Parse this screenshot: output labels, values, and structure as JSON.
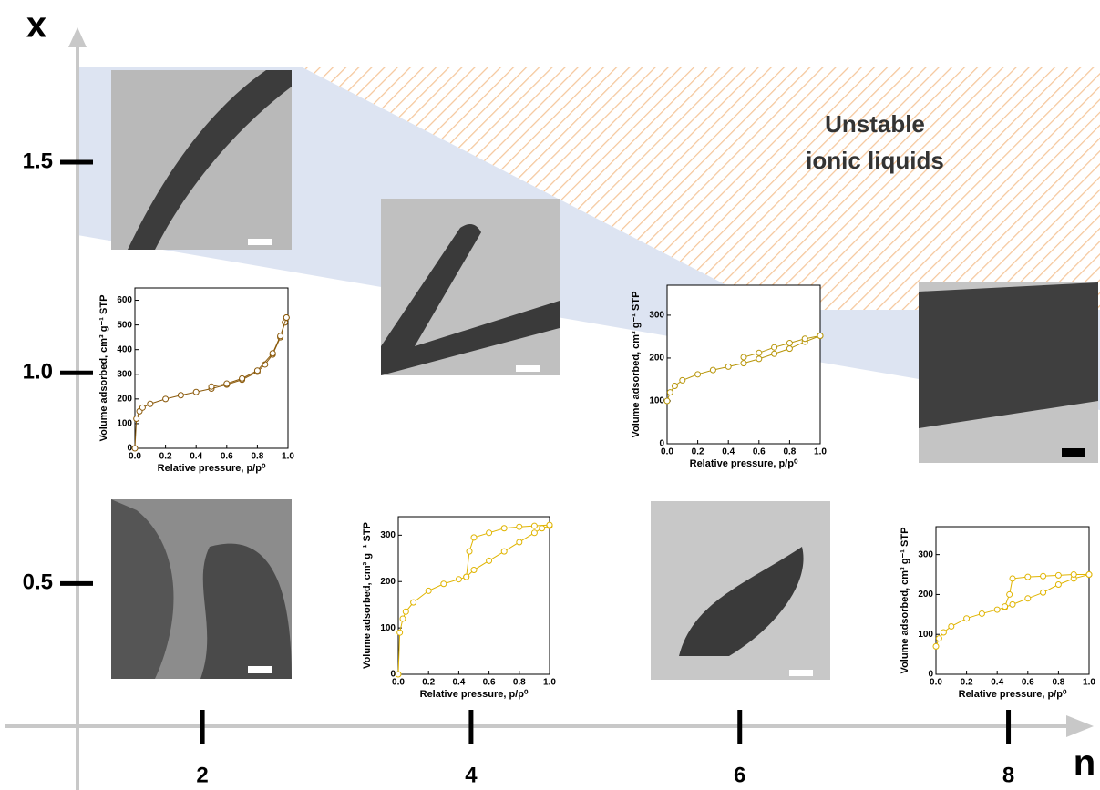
{
  "chart_data": [
    {
      "type": "frame",
      "x_label": "n",
      "y_label": "x",
      "xlim": [
        1.07,
        8.6
      ],
      "ylim": [
        0.17,
        1.82
      ],
      "xticks": [
        2,
        4,
        6,
        8
      ],
      "yticks": [
        0.5,
        {
          "value": 1,
          "label": "1.0"
        },
        1.5
      ],
      "annotation": [
        "Unstable",
        "ionic liquids"
      ]
    },
    {
      "type": "isotherm",
      "x_label": "Relative pressure, p/p⁰",
      "y_label": "Volume adsorbed, cm³ g⁻¹ STP",
      "xlim": [
        0,
        1
      ],
      "ylim": [
        0,
        650
      ],
      "xticks": [
        {
          "value": 0,
          "label": "0.0"
        },
        {
          "value": 0.2,
          "label": "0.2"
        },
        {
          "value": 0.4,
          "label": "0.4"
        },
        {
          "value": 0.6,
          "label": "0.6"
        },
        {
          "value": 0.8,
          "label": "0.8"
        },
        {
          "value": 1,
          "label": "1.0"
        }
      ],
      "yticks": [
        0,
        100,
        200,
        300,
        400,
        500,
        600
      ],
      "series": [
        {
          "color": "#8b5a0b",
          "x": [
            0,
            0.01,
            0.03,
            0.05,
            0.1,
            0.2,
            0.3,
            0.4,
            0.5,
            0.6,
            0.7,
            0.8,
            0.85,
            0.9,
            0.95,
            0.98,
            0.99
          ],
          "values": [
            0,
            120,
            150,
            165,
            180,
            200,
            215,
            228,
            242,
            258,
            278,
            310,
            340,
            380,
            450,
            510,
            530
          ]
        },
        {
          "color": "#8b5a0b",
          "x": [
            0.99,
            0.95,
            0.9,
            0.8,
            0.7,
            0.6,
            0.5
          ],
          "values": [
            530,
            455,
            385,
            315,
            283,
            262,
            250
          ]
        }
      ]
    },
    {
      "type": "isotherm",
      "x_label": "Relative pressure, p/p⁰",
      "y_label": "Volume adsorbed, cm³ g⁻¹ STP",
      "xlim": [
        0,
        1
      ],
      "ylim": [
        0,
        340
      ],
      "xticks": [
        {
          "value": 0,
          "label": "0.0"
        },
        {
          "value": 0.2,
          "label": "0.2"
        },
        {
          "value": 0.4,
          "label": "0.4"
        },
        {
          "value": 0.6,
          "label": "0.6"
        },
        {
          "value": 0.8,
          "label": "0.8"
        },
        {
          "value": 1,
          "label": "1.0"
        }
      ],
      "yticks": [
        0,
        100,
        200,
        300
      ],
      "series": [
        {
          "color": "#e0b400",
          "x": [
            0,
            0.01,
            0.03,
            0.05,
            0.1,
            0.2,
            0.3,
            0.4,
            0.45,
            0.5,
            0.6,
            0.7,
            0.8,
            0.9,
            0.95,
            1.0
          ],
          "values": [
            0,
            90,
            120,
            135,
            155,
            180,
            195,
            205,
            210,
            225,
            245,
            265,
            285,
            305,
            315,
            320
          ]
        },
        {
          "color": "#e0b400",
          "x": [
            1.0,
            0.9,
            0.8,
            0.7,
            0.6,
            0.5,
            0.47,
            0.45
          ],
          "values": [
            322,
            320,
            318,
            315,
            305,
            295,
            265,
            210
          ]
        }
      ]
    },
    {
      "type": "isotherm",
      "x_label": "Relative pressure, p/p⁰",
      "y_label": "Volume adsorbed, cm³ g⁻¹ STP",
      "xlim": [
        0,
        1
      ],
      "ylim": [
        0,
        370
      ],
      "xticks": [
        {
          "value": 0,
          "label": "0.0"
        },
        {
          "value": 0.2,
          "label": "0.2"
        },
        {
          "value": 0.4,
          "label": "0.4"
        },
        {
          "value": 0.6,
          "label": "0.6"
        },
        {
          "value": 0.8,
          "label": "0.8"
        },
        {
          "value": 1,
          "label": "1.0"
        }
      ],
      "yticks": [
        0,
        100,
        200,
        300
      ],
      "series": [
        {
          "color": "#b8960a",
          "x": [
            0,
            0.02,
            0.05,
            0.1,
            0.2,
            0.3,
            0.4,
            0.5,
            0.6,
            0.7,
            0.8,
            0.9,
            1.0
          ],
          "values": [
            100,
            120,
            135,
            148,
            162,
            172,
            180,
            188,
            198,
            210,
            222,
            238,
            252
          ]
        },
        {
          "color": "#b8960a",
          "x": [
            1.0,
            0.9,
            0.8,
            0.7,
            0.6,
            0.5
          ],
          "values": [
            252,
            245,
            235,
            225,
            212,
            202
          ]
        }
      ]
    },
    {
      "type": "isotherm",
      "x_label": "Relative pressure, p/p⁰",
      "y_label": "Volume adsorbed, cm³ g⁻¹ STP",
      "xlim": [
        0,
        1
      ],
      "ylim": [
        0,
        370
      ],
      "xticks": [
        {
          "value": 0,
          "label": "0.0"
        },
        {
          "value": 0.2,
          "label": "0.2"
        },
        {
          "value": 0.4,
          "label": "0.4"
        },
        {
          "value": 0.6,
          "label": "0.6"
        },
        {
          "value": 0.8,
          "label": "0.8"
        },
        {
          "value": 1,
          "label": "1.0"
        }
      ],
      "yticks": [
        0,
        100,
        200,
        300
      ],
      "series": [
        {
          "color": "#e0b400",
          "x": [
            0,
            0.02,
            0.05,
            0.1,
            0.2,
            0.3,
            0.4,
            0.45,
            0.5,
            0.6,
            0.7,
            0.8,
            0.9,
            1.0
          ],
          "values": [
            70,
            90,
            105,
            120,
            140,
            152,
            162,
            168,
            175,
            190,
            205,
            225,
            240,
            250
          ]
        },
        {
          "color": "#e0b400",
          "x": [
            1.0,
            0.9,
            0.8,
            0.7,
            0.6,
            0.5,
            0.48,
            0.45
          ],
          "values": [
            250,
            250,
            248,
            246,
            244,
            240,
            200,
            170
          ]
        }
      ]
    }
  ]
}
